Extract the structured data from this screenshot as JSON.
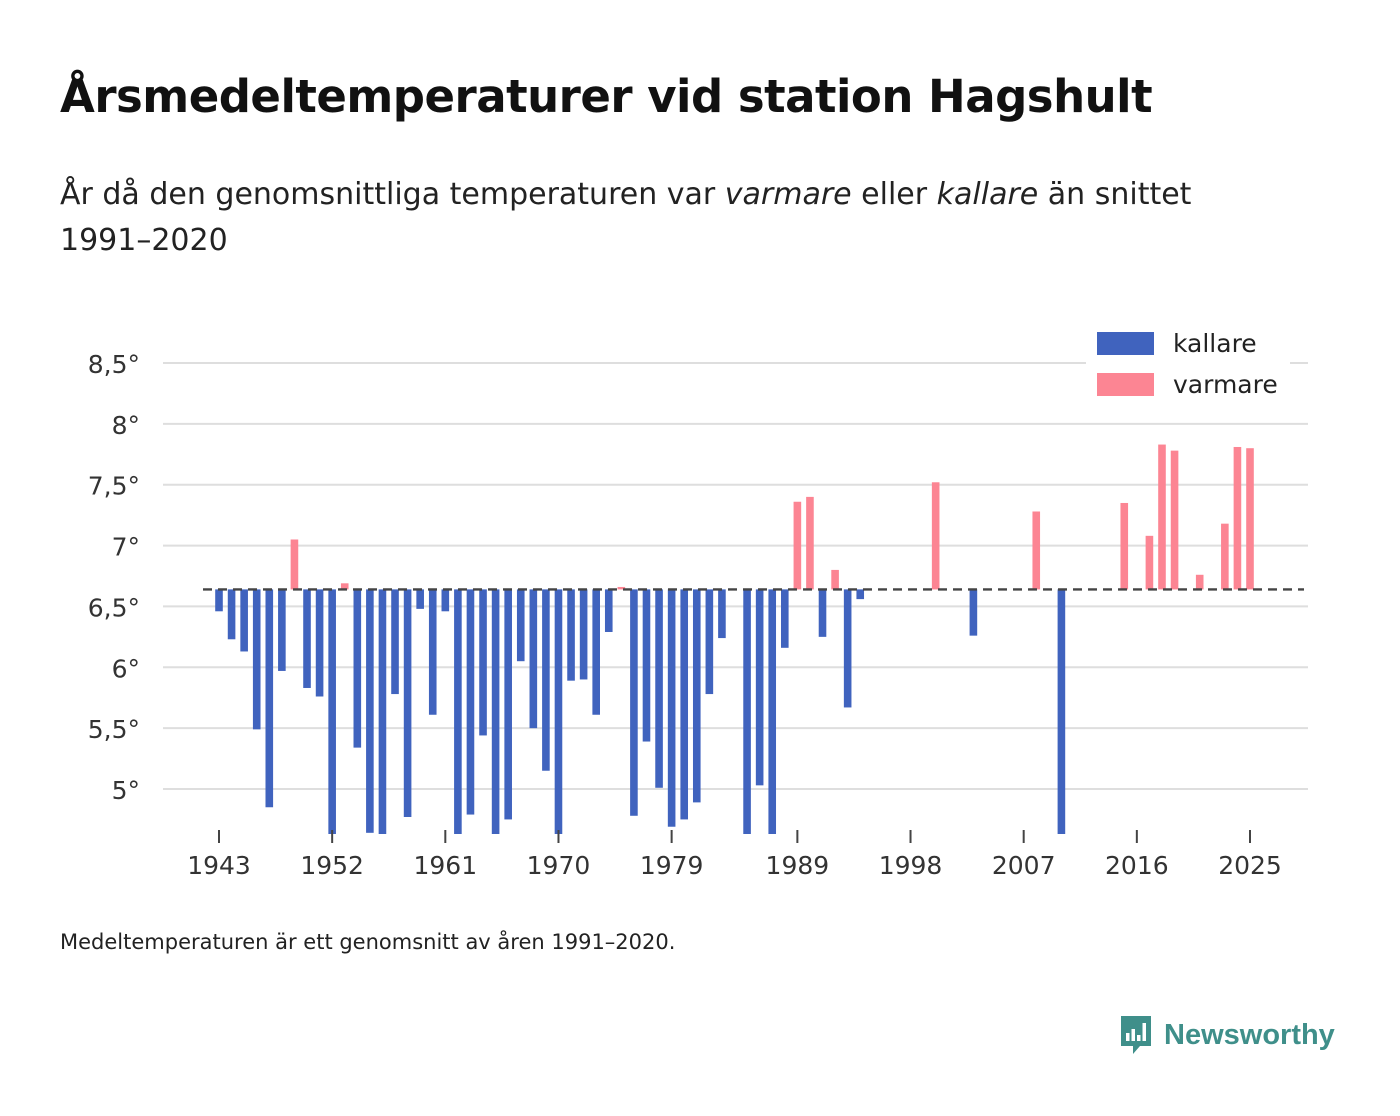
{
  "title": "Årsmedeltemperaturer vid station Hagshult",
  "subtitle": {
    "part1": "År då den genomsnittliga temperaturen var ",
    "warm_word": "varmare",
    "part2": " eller ",
    "cold_word": "kallare",
    "part3": " än snittet 1991–2020"
  },
  "footnote": "Medeltemperaturen är ett genomsnitt av åren 1991–2020.",
  "brand": {
    "name": "Newsworthy",
    "icon": "newsworthy-logo-icon",
    "color": "#3f8f8a"
  },
  "chart_data": {
    "type": "bar",
    "baseline": 6.64,
    "ylim": [
      4.6,
      8.75
    ],
    "xlim": [
      1941,
      2029
    ],
    "yticks": [
      5,
      5.5,
      6,
      6.5,
      7,
      7.5,
      8,
      8.5
    ],
    "ytick_labels": [
      "5°",
      "5,5°",
      "6°",
      "6,5°",
      "7°",
      "7,5°",
      "8°",
      "8,5°"
    ],
    "xticks": [
      1943,
      1952,
      1961,
      1970,
      1979,
      1989,
      1998,
      2007,
      2016,
      2025
    ],
    "colors": {
      "kallare": "#4063be",
      "varmare": "#fc8593"
    },
    "legend": [
      {
        "key": "kallare",
        "label": "kallare"
      },
      {
        "key": "varmare",
        "label": "varmare"
      }
    ],
    "legend_position": "top-right",
    "years": [
      1943,
      1944,
      1945,
      1946,
      1947,
      1948,
      1949,
      1950,
      1951,
      1952,
      1953,
      1954,
      1955,
      1956,
      1957,
      1958,
      1959,
      1960,
      1961,
      1962,
      1963,
      1964,
      1965,
      1966,
      1967,
      1968,
      1969,
      1970,
      1971,
      1972,
      1973,
      1974,
      1975,
      1976,
      1977,
      1978,
      1979,
      1980,
      1981,
      1982,
      1983,
      1985,
      1986,
      1987,
      1988,
      1989,
      1990,
      1991,
      1992,
      1993,
      1994,
      2000,
      2003,
      2008,
      2010,
      2015,
      2017,
      2018,
      2019,
      2021,
      2023,
      2024,
      2025
    ],
    "values": [
      6.46,
      6.23,
      6.13,
      5.49,
      4.85,
      5.97,
      7.05,
      5.83,
      5.76,
      4.6,
      6.69,
      5.34,
      4.64,
      4.6,
      5.78,
      4.77,
      6.48,
      5.61,
      6.46,
      4.62,
      4.79,
      5.44,
      4.62,
      4.75,
      6.05,
      5.5,
      5.15,
      4.62,
      5.89,
      5.9,
      5.61,
      6.29,
      6.66,
      4.78,
      5.39,
      5.01,
      4.69,
      4.75,
      4.89,
      5.78,
      6.24,
      4.62,
      5.03,
      4.62,
      6.16,
      7.36,
      7.4,
      6.25,
      6.8,
      5.67,
      6.56,
      7.52,
      6.26,
      7.28,
      4.6,
      7.35,
      7.08,
      7.83,
      7.78,
      6.76,
      7.18,
      7.81,
      7.8
    ]
  }
}
